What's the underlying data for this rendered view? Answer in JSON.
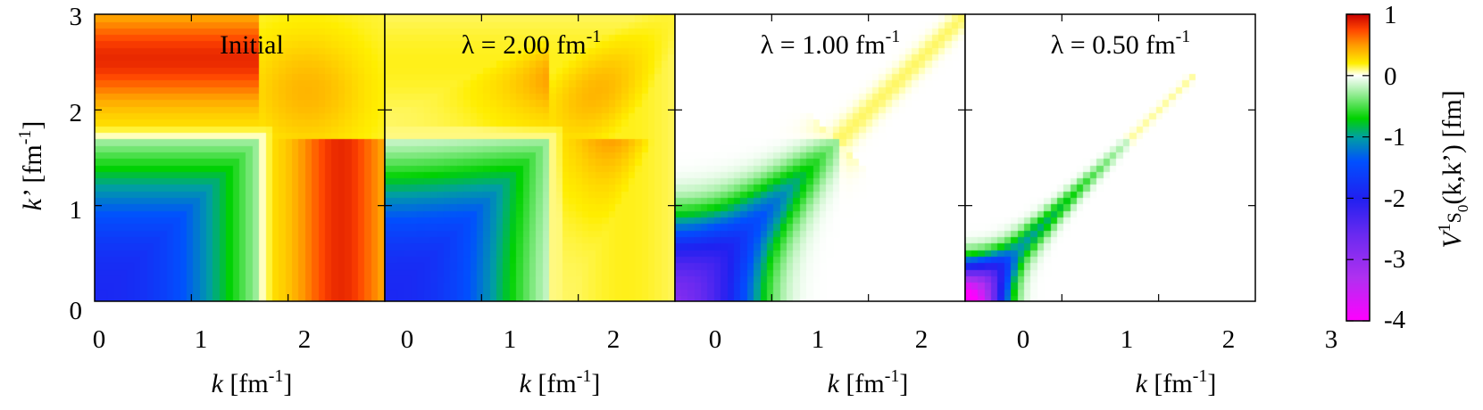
{
  "chart_data": {
    "type": "heatmap",
    "colorbar": {
      "label_parts": {
        "v": "V",
        "sup": "1",
        "s": "S",
        "sub": "0",
        "args": "(k,k’) [fm]"
      },
      "ticks": [
        {
          "value": 1,
          "label": "1"
        },
        {
          "value": 0,
          "label": "0"
        },
        {
          "value": -1,
          "label": "-1"
        },
        {
          "value": -2,
          "label": "-2"
        },
        {
          "value": -3,
          "label": "-3"
        },
        {
          "value": -4,
          "label": "-4"
        }
      ],
      "range": [
        -4,
        1
      ],
      "colors": [
        {
          "value": 1,
          "color": "#c80000"
        },
        {
          "value": 0.75,
          "color": "#ff4400"
        },
        {
          "value": 0.5,
          "color": "#ff9900"
        },
        {
          "value": 0.2,
          "color": "#ffee00"
        },
        {
          "value": 0.05,
          "color": "#ffffc0"
        },
        {
          "value": 0,
          "color": "#ffffff"
        },
        {
          "value": -0.25,
          "color": "#a8f0a8"
        },
        {
          "value": -0.7,
          "color": "#00d200"
        },
        {
          "value": -1,
          "color": "#00a0a0"
        },
        {
          "value": -1.4,
          "color": "#0050ff"
        },
        {
          "value": -2,
          "color": "#2020f0"
        },
        {
          "value": -2.6,
          "color": "#6a2af0"
        },
        {
          "value": -3.3,
          "color": "#b030f0"
        },
        {
          "value": -4,
          "color": "#ff00ff"
        }
      ]
    },
    "panels": [
      {
        "title": "Initial",
        "lambda": null,
        "xticks": [
          "0",
          "1",
          "2"
        ]
      },
      {
        "title_prefix": "λ = 2.00 fm",
        "title_sup": "-1",
        "lambda": 2.0,
        "xticks": [
          "0",
          "1",
          "2"
        ]
      },
      {
        "title_prefix": "λ = 1.00 fm",
        "title_sup": "-1",
        "lambda": 1.0,
        "xticks": [
          "0",
          "1",
          "2"
        ]
      },
      {
        "title_prefix": "λ = 0.50 fm",
        "title_sup": "-1",
        "lambda": 0.5,
        "xticks": [
          "0",
          "1",
          "2",
          "3"
        ]
      }
    ],
    "x_axis": {
      "label_italic": "k",
      "label_unit": " [fm",
      "label_sup": "-1",
      "label_end": "]",
      "range": [
        0,
        3
      ]
    },
    "y_axis": {
      "label_italic": "k’",
      "label_unit": " [fm",
      "label_sup": "-1",
      "label_end": "]",
      "range": [
        0,
        3
      ],
      "ticks": [
        "0",
        "1",
        "2",
        "3"
      ]
    },
    "grid": false
  }
}
